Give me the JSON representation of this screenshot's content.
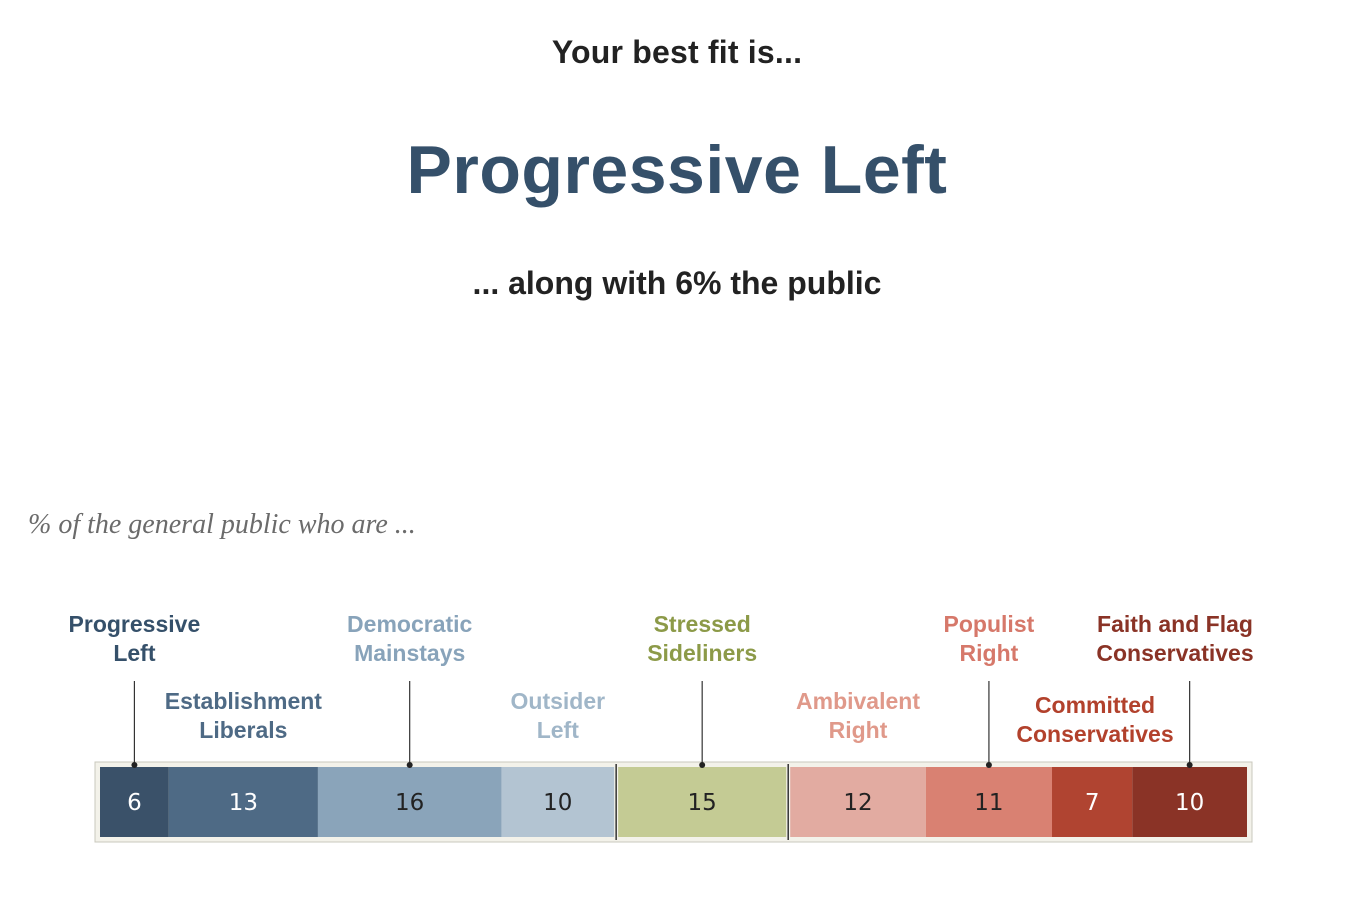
{
  "intro": {
    "top": "Your best fit is...",
    "result": "Progressive Left",
    "bottom": "... along with 6% the public"
  },
  "chart_data": {
    "type": "bar",
    "orientation": "horizontal-stacked",
    "subtitle": "% of the general public who are ...",
    "group_separators_after": [
      3,
      4
    ],
    "segments": [
      {
        "name": "Progressive Left",
        "value": 6,
        "color": "#3a5169",
        "label_color": "#35506a",
        "text_color": "#ffffff"
      },
      {
        "name": "Establishment Liberals",
        "value": 13,
        "color": "#4e6a85",
        "label_color": "#4e6a85",
        "text_color": "#ffffff"
      },
      {
        "name": "Democratic Mainstays",
        "value": 16,
        "color": "#8aa4ba",
        "label_color": "#88a3ba",
        "text_color": "#222222"
      },
      {
        "name": "Outsider Left",
        "value": 10,
        "color": "#b3c4d2",
        "label_color": "#a0b6c8",
        "text_color": "#222222"
      },
      {
        "name": "Stressed Sideliners",
        "value": 15,
        "color": "#c4cb94",
        "label_color": "#8c9a48",
        "text_color": "#222222"
      },
      {
        "name": "Ambivalent Right",
        "value": 12,
        "color": "#e2aba1",
        "label_color": "#e0998a",
        "text_color": "#222222"
      },
      {
        "name": "Populist Right",
        "value": 11,
        "color": "#d98172",
        "label_color": "#d6786a",
        "text_color": "#222222"
      },
      {
        "name": "Committed Conservatives",
        "value": 7,
        "color": "#b04431",
        "label_color": "#b2412c",
        "text_color": "#ffffff"
      },
      {
        "name": "Faith and Flag Conservatives",
        "value": 10,
        "color": "#8a3326",
        "label_color": "#8a3326",
        "text_color": "#ffffff"
      }
    ]
  }
}
